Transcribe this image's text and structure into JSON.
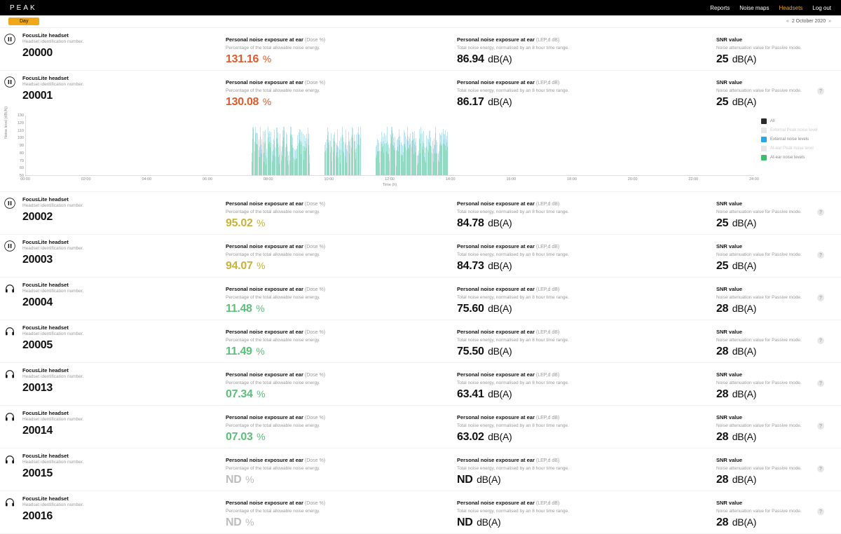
{
  "brand": "PEAK",
  "nav": {
    "reports": "Reports",
    "noisemaps": "Noise maps",
    "headsets": "Headsets",
    "logout": "Log out"
  },
  "subbar": {
    "day_label": "Day",
    "date_prev": "«",
    "date": "2 October 2020",
    "date_next": "»"
  },
  "labels": {
    "headset_title": "FocusLite headset",
    "headset_sub": "Headset identification number.",
    "dose_title": "Personal noise exposure at ear",
    "dose_hint": "(Dose %)",
    "dose_sub": "Percentage of the total allowable noise energy.",
    "lep_title": "Personal noise exposure at ear",
    "lep_hint": "(LEP,d dB)",
    "lep_sub": "Total noise energy, normalised by an 8 hour time range.",
    "snr_title": "SNR value",
    "snr_sub": "Noise attenuation value for Passive mode.",
    "pct_unit": "%",
    "db_unit": "dB(A)"
  },
  "rows": [
    {
      "id": "20000",
      "dose": "131.16",
      "dose_class": "dose-red",
      "lep": "86.94",
      "snr": "25",
      "icon": "pause",
      "help": false
    },
    {
      "id": "20001",
      "dose": "130.08",
      "dose_class": "dose-red",
      "lep": "86.17",
      "snr": "25",
      "icon": "pause",
      "help": true,
      "expanded": true
    },
    {
      "id": "20002",
      "dose": "95.02",
      "dose_class": "dose-yellow",
      "lep": "84.78",
      "snr": "25",
      "icon": "pause",
      "help": true
    },
    {
      "id": "20003",
      "dose": "94.07",
      "dose_class": "dose-yellow",
      "lep": "84.73",
      "snr": "25",
      "icon": "pause",
      "help": true
    },
    {
      "id": "20004",
      "dose": "11.48",
      "dose_class": "dose-green",
      "lep": "75.60",
      "snr": "28",
      "icon": "head",
      "help": true
    },
    {
      "id": "20005",
      "dose": "11.49",
      "dose_class": "dose-green",
      "lep": "75.50",
      "snr": "28",
      "icon": "head",
      "help": true
    },
    {
      "id": "20013",
      "dose": "07.34",
      "dose_class": "dose-green",
      "lep": "63.41",
      "snr": "28",
      "icon": "head",
      "help": true
    },
    {
      "id": "20014",
      "dose": "07.03",
      "dose_class": "dose-green",
      "lep": "63.02",
      "snr": "28",
      "icon": "head",
      "help": true
    },
    {
      "id": "20015",
      "dose": "ND",
      "dose_class": "dose-grey",
      "lep": "ND",
      "snr": "28",
      "icon": "head",
      "help": true
    },
    {
      "id": "20016",
      "dose": "ND",
      "dose_class": "dose-grey",
      "lep": "ND",
      "snr": "28",
      "icon": "head",
      "help": true
    }
  ],
  "chart": {
    "y_label": "Noise level (dB(A))",
    "y_min": 50,
    "y_max": 130,
    "y_step": 10,
    "x_label": "Time (h)",
    "x_ticks": [
      "00:00",
      "02:00",
      "04:00",
      "06:00",
      "08:00",
      "10:00",
      "12:00",
      "14:00",
      "16:00",
      "18:00",
      "20:00",
      "22:00",
      "24:00"
    ],
    "legend": [
      {
        "label": "All",
        "color": "#2b2b2b",
        "dim": false
      },
      {
        "label": "External Peak noise level",
        "color": "#e6e6e6",
        "dim": true
      },
      {
        "label": "External noise levels",
        "color": "#2aa7e0",
        "dim": false
      },
      {
        "label": "At-ear Peak noise level",
        "color": "#e6e6e6",
        "dim": true
      },
      {
        "label": "At-ear noise levels",
        "color": "#3bbf6a",
        "dim": false
      }
    ],
    "clusters": [
      {
        "start_pct": 31,
        "width_pct": 8,
        "samples": 70
      },
      {
        "start_pct": 41,
        "width_pct": 5,
        "samples": 40
      },
      {
        "start_pct": 48,
        "width_pct": 10,
        "samples": 90
      }
    ],
    "colors": {
      "ext": "#6fc6e6",
      "ear": "#6fd19a"
    },
    "noise_min": 60,
    "noise_max": 115
  }
}
